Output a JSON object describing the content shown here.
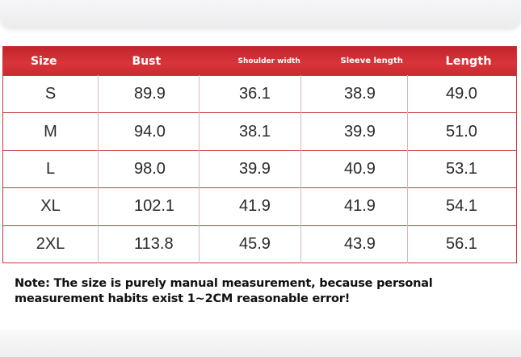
{
  "table": {
    "headers": [
      "Size",
      "Bust",
      "Shoulder width",
      "Sleeve length",
      "Length"
    ],
    "rows": [
      [
        "S",
        "89.9",
        "36.1",
        "38.9",
        "49.0"
      ],
      [
        "M",
        "94.0",
        "38.1",
        "39.9",
        "51.0"
      ],
      [
        "L",
        "98.0",
        "39.9",
        "40.9",
        "53.1"
      ],
      [
        "XL",
        "102.1",
        "41.9",
        "41.9",
        "54.1"
      ],
      [
        "2XL",
        "113.8",
        "45.9",
        "43.9",
        "56.1"
      ]
    ]
  },
  "note": "Note: The size is purely manual measurement, because personal measurement habits exist 1~2CM reasonable error!",
  "colors": {
    "header_red": "#d02f35",
    "border_red": "#c23a3a"
  }
}
